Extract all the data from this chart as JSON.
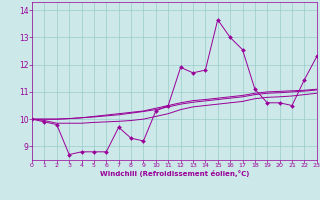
{
  "xlabel": "Windchill (Refroidissement éolien,°C)",
  "x": [
    0,
    1,
    2,
    3,
    4,
    5,
    6,
    7,
    8,
    9,
    10,
    11,
    12,
    13,
    14,
    15,
    16,
    17,
    18,
    19,
    20,
    21,
    22,
    23
  ],
  "series": [
    [
      10.0,
      9.9,
      9.8,
      8.7,
      8.8,
      8.8,
      8.8,
      9.7,
      9.3,
      9.2,
      10.3,
      10.5,
      11.9,
      11.7,
      11.8,
      13.65,
      13.0,
      12.55,
      11.1,
      10.6,
      10.6,
      10.5,
      11.45,
      12.3
    ],
    [
      10.0,
      9.95,
      9.85,
      9.85,
      9.85,
      9.88,
      9.9,
      9.92,
      9.95,
      10.0,
      10.1,
      10.2,
      10.35,
      10.45,
      10.5,
      10.55,
      10.6,
      10.65,
      10.75,
      10.8,
      10.82,
      10.85,
      10.9,
      10.95
    ],
    [
      10.0,
      10.0,
      10.0,
      10.02,
      10.05,
      10.1,
      10.15,
      10.2,
      10.25,
      10.3,
      10.4,
      10.5,
      10.6,
      10.68,
      10.72,
      10.77,
      10.82,
      10.87,
      10.95,
      11.0,
      11.02,
      11.04,
      11.06,
      11.1
    ],
    [
      10.0,
      10.0,
      10.0,
      10.02,
      10.05,
      10.08,
      10.12,
      10.16,
      10.22,
      10.28,
      10.35,
      10.45,
      10.55,
      10.62,
      10.67,
      10.72,
      10.77,
      10.82,
      10.9,
      10.95,
      10.97,
      11.0,
      11.03,
      11.07
    ]
  ],
  "line_color": "#990099",
  "bg_color": "#cce8e8",
  "grid_color": "#99cccc",
  "ylim": [
    8.5,
    14.3
  ],
  "xlim": [
    0,
    23
  ],
  "yticks": [
    9,
    10,
    11,
    12,
    13,
    14
  ],
  "xticks": [
    0,
    1,
    2,
    3,
    4,
    5,
    6,
    7,
    8,
    9,
    10,
    11,
    12,
    13,
    14,
    15,
    16,
    17,
    18,
    19,
    20,
    21,
    22,
    23
  ]
}
